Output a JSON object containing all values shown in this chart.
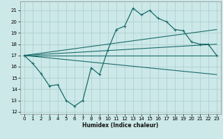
{
  "xlabel": "Humidex (Indice chaleur)",
  "background_color": "#cce8e8",
  "grid_color": "#aacccc",
  "line_color": "#1a6b6b",
  "xlim": [
    -0.5,
    23.5
  ],
  "ylim": [
    11.8,
    21.8
  ],
  "xticks": [
    0,
    1,
    2,
    3,
    4,
    5,
    6,
    7,
    8,
    9,
    10,
    11,
    12,
    13,
    14,
    15,
    16,
    17,
    18,
    19,
    20,
    21,
    22,
    23
  ],
  "yticks": [
    12,
    13,
    14,
    15,
    16,
    17,
    18,
    19,
    20,
    21
  ],
  "line1_x": [
    0,
    1,
    2,
    3,
    4,
    5,
    6,
    7,
    8,
    9,
    10,
    11,
    12,
    13,
    14,
    15,
    16,
    17,
    18,
    19,
    20,
    21,
    22,
    23
  ],
  "line1_y": [
    17.0,
    16.3,
    15.4,
    14.3,
    14.4,
    13.0,
    12.5,
    13.0,
    15.9,
    15.3,
    17.5,
    19.3,
    19.6,
    21.2,
    20.6,
    21.0,
    20.3,
    20.0,
    19.3,
    19.2,
    18.2,
    18.0,
    18.0,
    17.0
  ],
  "line2_x": [
    0,
    23
  ],
  "line2_y": [
    17.0,
    19.3
  ],
  "line3_x": [
    0,
    23
  ],
  "line3_y": [
    17.0,
    18.0
  ],
  "line4_x": [
    0,
    23
  ],
  "line4_y": [
    17.0,
    17.0
  ],
  "line5_x": [
    0,
    23
  ],
  "line5_y": [
    17.0,
    15.3
  ]
}
